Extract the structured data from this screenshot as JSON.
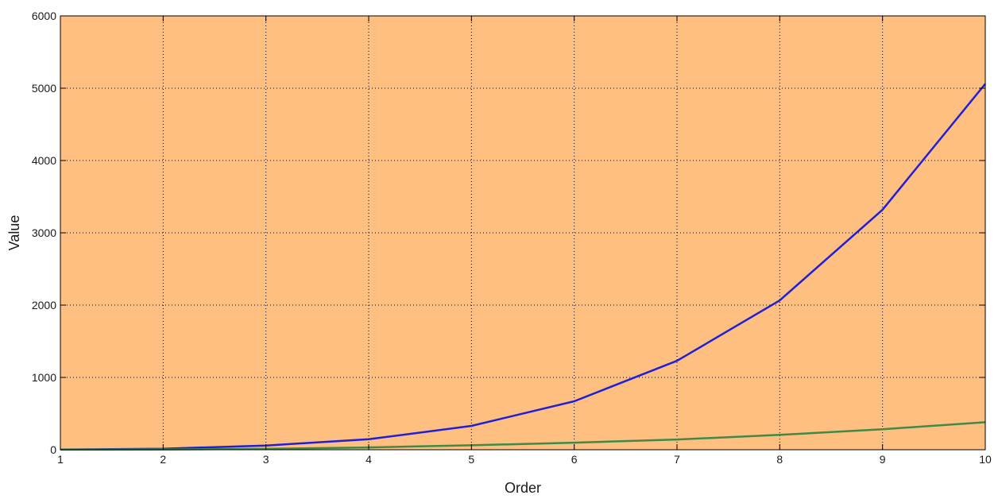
{
  "chart_data": {
    "type": "line",
    "title": "",
    "xlabel": "Order",
    "ylabel": "Value",
    "xlim": [
      1,
      10
    ],
    "ylim": [
      0,
      6000
    ],
    "xticks": [
      1,
      2,
      3,
      4,
      5,
      6,
      7,
      8,
      9,
      10
    ],
    "yticks": [
      0,
      1000,
      2000,
      3000,
      4000,
      5000,
      6000
    ],
    "grid": true,
    "background_color": "#FFBF80",
    "x": [
      1,
      2,
      3,
      4,
      5,
      6,
      7,
      8,
      9,
      10
    ],
    "series": [
      {
        "color": "#1F1FD8",
        "values": [
          2,
          14,
          58,
          145,
          330,
          670,
          1230,
          2065,
          3320,
          5060
        ]
      },
      {
        "color": "#3E8A46",
        "values": [
          1,
          4,
          12,
          32,
          62,
          98,
          142,
          205,
          283,
          380
        ]
      }
    ]
  }
}
